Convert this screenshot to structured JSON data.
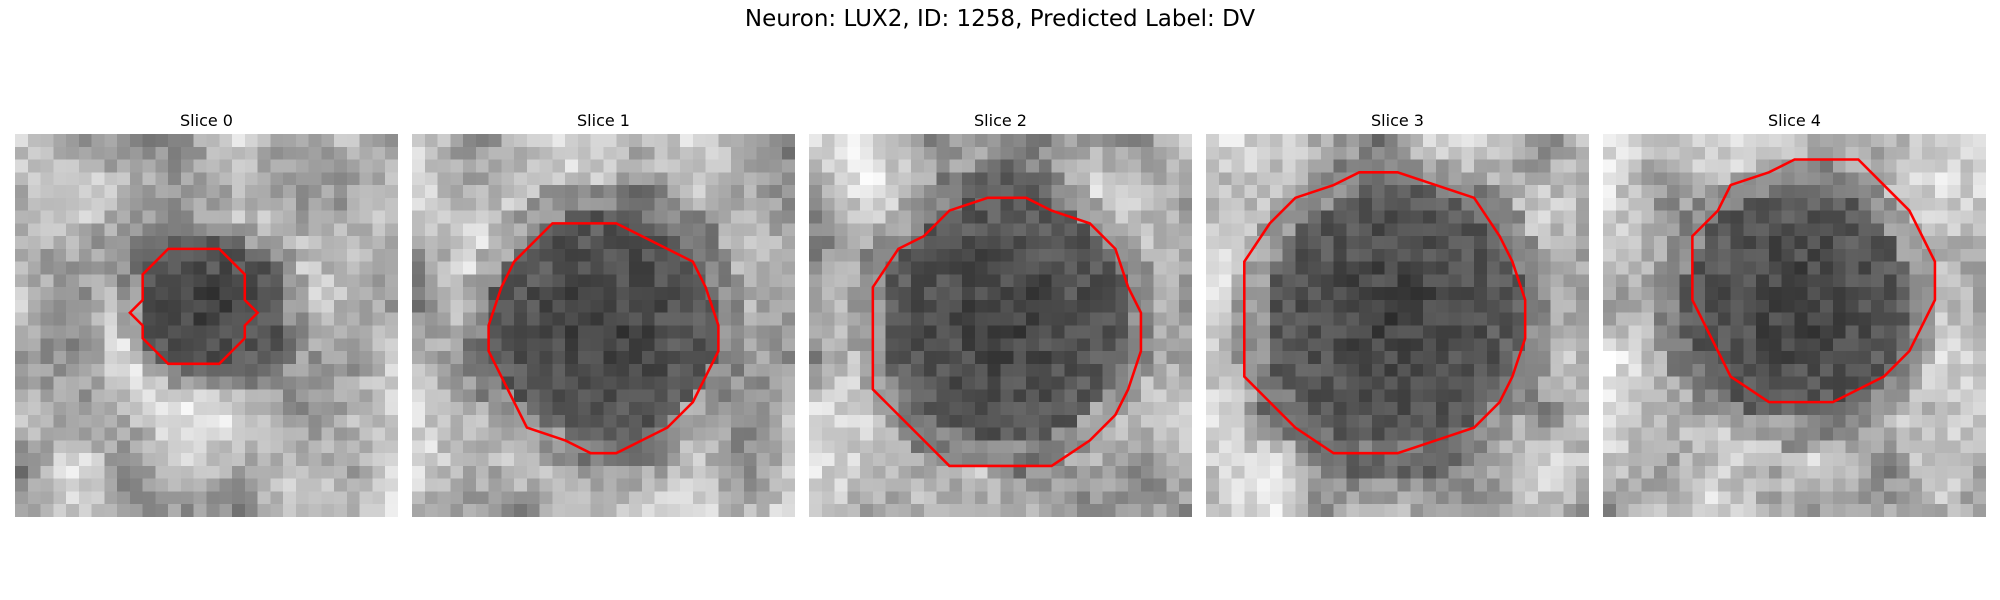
{
  "figure": {
    "title": "Neuron: LUX2, ID: 1258, Predicted Label: DV",
    "contour_color": "#ff0000"
  },
  "panels": [
    {
      "title": "Slice 0",
      "contour_scale": 0.72,
      "contour_offset": [
        -0.05,
        0.0
      ]
    },
    {
      "title": "Slice 1",
      "contour_scale": 0.96,
      "contour_offset": [
        0.0,
        0.03
      ]
    },
    {
      "title": "Slice 2",
      "contour_scale": 1.04,
      "contour_offset": [
        0.0,
        0.04
      ]
    },
    {
      "title": "Slice 3",
      "contour_scale": 1.06,
      "contour_offset": [
        -0.03,
        0.0
      ]
    },
    {
      "title": "Slice 4",
      "contour_scale": 1.02,
      "contour_offset": [
        0.04,
        -0.06
      ]
    }
  ]
}
